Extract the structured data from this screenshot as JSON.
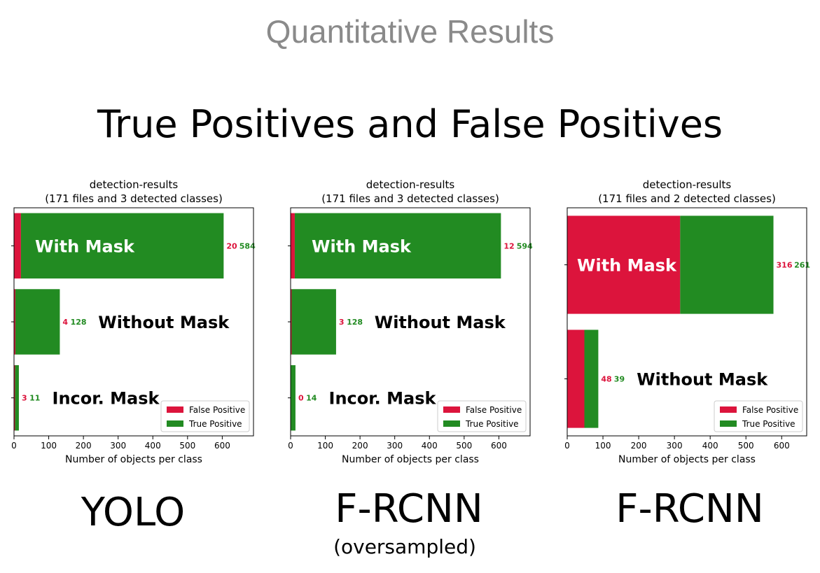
{
  "slide": {
    "heading": "Quantitative Results",
    "subheading": "True Positives and False Positives",
    "captions": [
      "YOLO",
      "F-RCNN",
      "F-RCNN"
    ],
    "caption_subs": [
      "",
      "(oversampled)",
      ""
    ]
  },
  "colors": {
    "false_positive": "#dc143c",
    "true_positive": "#228b22"
  },
  "chart_data": [
    {
      "type": "bar",
      "orientation": "horizontal",
      "stacked": true,
      "title": "detection-results\n(171 files and 3 detected classes)",
      "xlabel": "Number of objects per class",
      "ylabel": "",
      "xlim": [
        0,
        690
      ],
      "xticks": [
        0,
        100,
        200,
        300,
        400,
        500,
        600
      ],
      "categories": [
        "With Mask",
        "Without Mask",
        "Incor. Mask"
      ],
      "category_labels": [
        "With Mask",
        "Without Mask",
        "Incor. Mask"
      ],
      "series": [
        {
          "name": "False Positive",
          "values": [
            20,
            4,
            3
          ]
        },
        {
          "name": "True Positive",
          "values": [
            584,
            128,
            11
          ]
        }
      ],
      "legend": "bottom-right"
    },
    {
      "type": "bar",
      "orientation": "horizontal",
      "stacked": true,
      "title": "detection-results\n(171 files and 3 detected classes)",
      "xlabel": "Number of objects per class",
      "ylabel": "",
      "xlim": [
        0,
        690
      ],
      "xticks": [
        0,
        100,
        200,
        300,
        400,
        500,
        600
      ],
      "categories": [
        "With Mask",
        "Without Mask",
        "Incor. Mask"
      ],
      "category_labels": [
        "With Mask",
        "Without Mask",
        "Incor. Mask"
      ],
      "series": [
        {
          "name": "False Positive",
          "values": [
            12,
            3,
            0
          ]
        },
        {
          "name": "True Positive",
          "values": [
            594,
            128,
            14
          ]
        }
      ],
      "legend": "bottom-right"
    },
    {
      "type": "bar",
      "orientation": "horizontal",
      "stacked": true,
      "title": "detection-results\n(171 files and 2 detected classes)",
      "xlabel": "Number of objects per class",
      "ylabel": "",
      "xlim": [
        0,
        670
      ],
      "xticks": [
        0,
        100,
        200,
        300,
        400,
        500,
        600
      ],
      "categories": [
        "With Mask",
        "Without Mask"
      ],
      "category_labels": [
        "With Mask",
        "Without Mask"
      ],
      "series": [
        {
          "name": "False Positive",
          "values": [
            316,
            48
          ]
        },
        {
          "name": "True Positive",
          "values": [
            261,
            39
          ]
        }
      ],
      "legend": "bottom-right"
    }
  ]
}
